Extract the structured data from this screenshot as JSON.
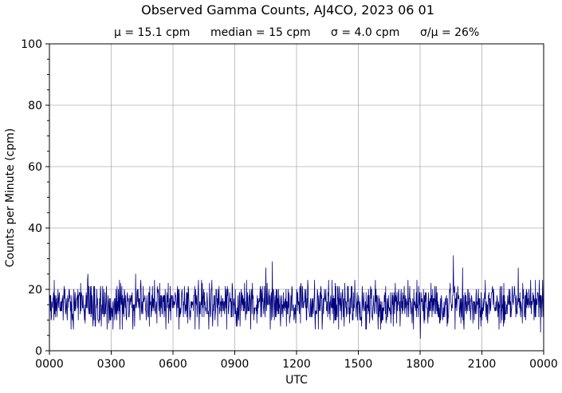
{
  "chart_data": {
    "type": "line",
    "title": "Observed Gamma Counts, AJ4CO, 2023 06 01",
    "stats": {
      "mean": "μ = 15.1 cpm",
      "median": "median = 15 cpm",
      "sigma": "σ = 4.0 cpm",
      "ratio": "σ/μ = 26%"
    },
    "xlabel": "UTC",
    "ylabel": "Counts per Minute (cpm)",
    "x_tick_labels": [
      "0000",
      "0300",
      "0600",
      "0900",
      "1200",
      "1500",
      "1800",
      "2100",
      "0000"
    ],
    "y_tick_labels": [
      "0",
      "20",
      "40",
      "60",
      "80",
      "100"
    ],
    "ylim": [
      0,
      100
    ],
    "grid": true,
    "line_color": "#00007f",
    "series": [
      {
        "summary": {
          "mean": 15.1,
          "median": 15,
          "sd": 4.0,
          "minutes": 1440
        },
        "highlights": [
          {
            "time": "0152",
            "value": 25
          },
          {
            "time": "0411",
            "value": 25
          },
          {
            "time": "1030",
            "value": 27
          },
          {
            "time": "1049",
            "value": 29
          },
          {
            "time": "1800",
            "value": 4
          },
          {
            "time": "1936",
            "value": 31
          },
          {
            "time": "2003",
            "value": 27
          },
          {
            "time": "2245",
            "value": 27
          },
          {
            "time": "2350",
            "value": 6
          }
        ]
      }
    ]
  }
}
